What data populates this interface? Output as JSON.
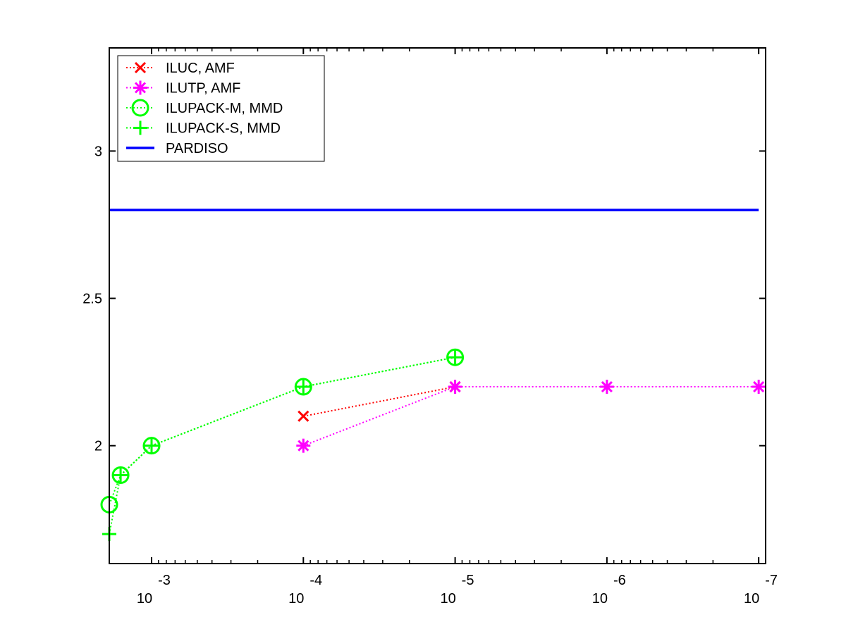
{
  "chart_data": {
    "type": "line",
    "x_scale": "log",
    "x_reversed": true,
    "xlim": [
      0.0019,
      9e-08
    ],
    "ylim": [
      1.6,
      3.35
    ],
    "x_ticks": [
      {
        "value": 0.001,
        "base": "10",
        "exp": "-3"
      },
      {
        "value": 0.0001,
        "base": "10",
        "exp": "-4"
      },
      {
        "value": 1e-05,
        "base": "10",
        "exp": "-5"
      },
      {
        "value": 1e-06,
        "base": "10",
        "exp": "-6"
      },
      {
        "value": 1e-07,
        "base": "10",
        "exp": "-7"
      }
    ],
    "y_ticks": [
      {
        "value": 2,
        "label": "2"
      },
      {
        "value": 2.5,
        "label": "2.5"
      },
      {
        "value": 3,
        "label": "3"
      }
    ],
    "grid": false,
    "legend_position": "top-left",
    "series": [
      {
        "name": "ILUC, AMF",
        "color": "#ff0000",
        "linestyle": "dotted",
        "marker": "x",
        "x": [
          0.0001,
          1e-05
        ],
        "y": [
          2.1,
          2.2
        ]
      },
      {
        "name": "ILUTP, AMF",
        "color": "#ff00ff",
        "linestyle": "dotted",
        "marker": "star",
        "x": [
          0.0001,
          1e-05,
          1e-06,
          1e-07
        ],
        "y": [
          2.0,
          2.2,
          2.2,
          2.2
        ]
      },
      {
        "name": "ILUPACK-M, MMD",
        "color": "#00ff00",
        "linestyle": "dotted",
        "marker": "circle",
        "x": [
          0.0019,
          0.0016,
          0.001,
          0.0001,
          1e-05
        ],
        "y": [
          1.8,
          1.9,
          2.0,
          2.2,
          2.3
        ]
      },
      {
        "name": "ILUPACK-S, MMD",
        "color": "#00ff00",
        "linestyle": "dotted",
        "marker": "plus",
        "x": [
          0.0019,
          0.0016,
          0.001,
          0.0001,
          1e-05
        ],
        "y": [
          1.7,
          1.9,
          2.0,
          2.2,
          2.3
        ]
      },
      {
        "name": "PARDISO",
        "color": "#0000ff",
        "linestyle": "solid",
        "marker": "none",
        "x": [
          0.0019,
          1e-07
        ],
        "y": [
          2.8,
          2.8
        ]
      }
    ]
  }
}
